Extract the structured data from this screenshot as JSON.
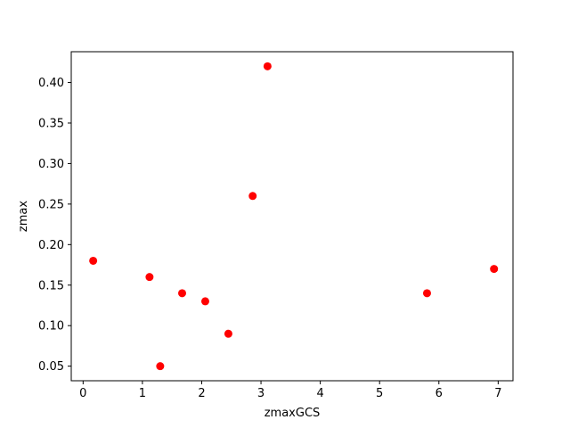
{
  "chart_data": {
    "type": "scatter",
    "title": "",
    "xlabel": "zmaxGCS",
    "ylabel": "zmax",
    "xlim": [
      -0.2,
      7.25
    ],
    "ylim": [
      0.032,
      0.438
    ],
    "xticks": [
      0,
      1,
      2,
      3,
      4,
      5,
      6,
      7
    ],
    "yticks": [
      0.05,
      0.1,
      0.15,
      0.2,
      0.25,
      0.3,
      0.35,
      0.4
    ],
    "grid": false,
    "legend": "none",
    "marker_color": "#ff0000",
    "points": [
      {
        "x": 0.17,
        "y": 0.18
      },
      {
        "x": 1.12,
        "y": 0.16
      },
      {
        "x": 1.3,
        "y": 0.05
      },
      {
        "x": 1.67,
        "y": 0.14
      },
      {
        "x": 2.06,
        "y": 0.13
      },
      {
        "x": 2.45,
        "y": 0.09
      },
      {
        "x": 2.86,
        "y": 0.26
      },
      {
        "x": 3.11,
        "y": 0.42
      },
      {
        "x": 5.8,
        "y": 0.14
      },
      {
        "x": 6.93,
        "y": 0.17
      }
    ]
  }
}
